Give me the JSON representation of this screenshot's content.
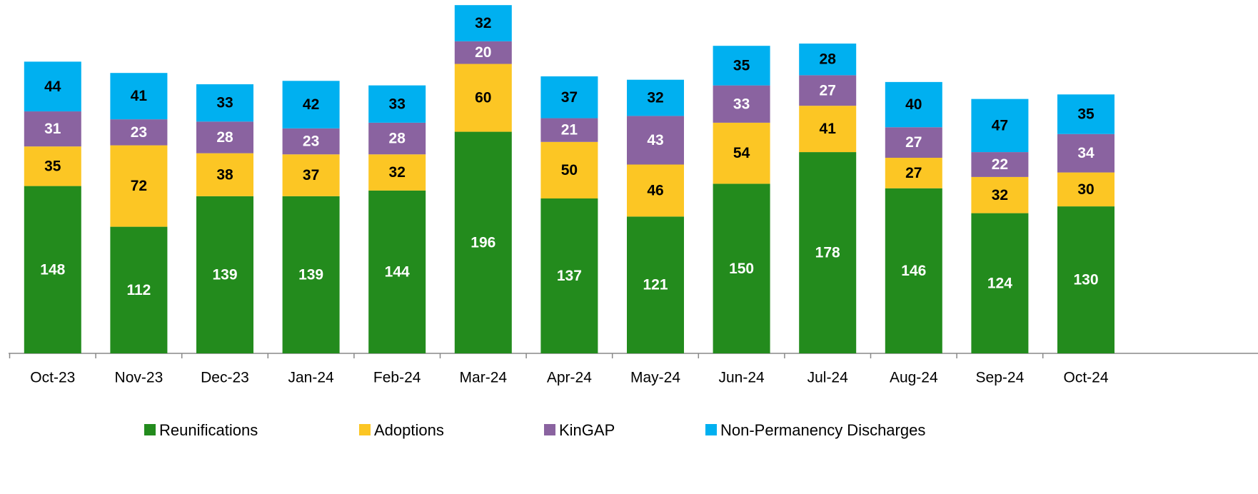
{
  "chart_data": {
    "type": "stacked-bar",
    "categories": [
      "Oct-23",
      "Nov-23",
      "Dec-23",
      "Jan-24",
      "Feb-24",
      "Mar-24",
      "Apr-24",
      "May-24",
      "Jun-24",
      "Jul-24",
      "Aug-24",
      "Sep-24",
      "Oct-24"
    ],
    "series": [
      {
        "name": "Reunifications",
        "color": "#238b1d",
        "values": [
          148,
          112,
          139,
          139,
          144,
          196,
          137,
          121,
          150,
          178,
          146,
          124,
          130
        ]
      },
      {
        "name": "Adoptions",
        "color": "#fcc624",
        "values": [
          35,
          72,
          38,
          37,
          32,
          60,
          50,
          46,
          54,
          41,
          27,
          32,
          30
        ]
      },
      {
        "name": "KinGAP",
        "color": "#8a63a0",
        "values": [
          31,
          23,
          28,
          23,
          28,
          20,
          21,
          43,
          33,
          27,
          27,
          22,
          34
        ]
      },
      {
        "name": "Non-Permanency Discharges",
        "color": "#00b0f0",
        "values": [
          44,
          41,
          33,
          42,
          33,
          32,
          37,
          32,
          35,
          28,
          40,
          47,
          35
        ]
      }
    ],
    "ylim": [
      0,
      310
    ],
    "legend": "bottom"
  }
}
